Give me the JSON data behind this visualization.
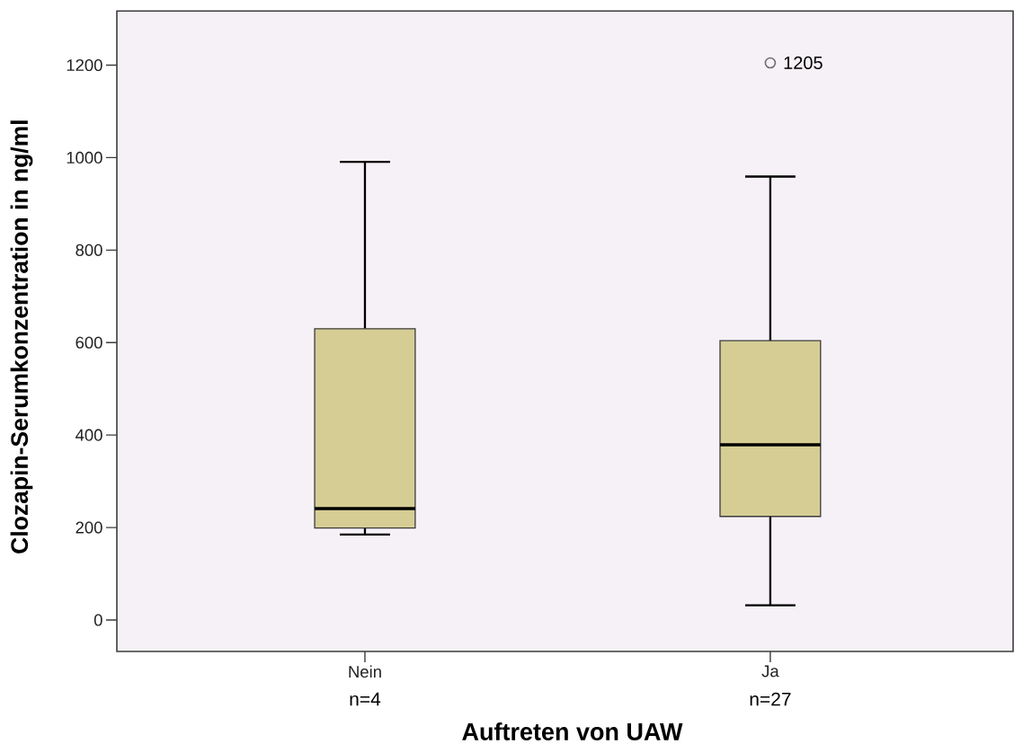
{
  "chart_data": {
    "type": "box",
    "xlabel": "Auftreten von UAW",
    "ylabel": "Clozapin-Serumkonzentration in ng/ml",
    "categories": [
      "Nein",
      "Ja"
    ],
    "boxes": [
      {
        "low": 185,
        "q1": 199,
        "median": 241,
        "q3": 630,
        "high": 991
      },
      {
        "low": 32,
        "q1": 224,
        "median": 379,
        "q3": 604,
        "high": 959,
        "outliers": [
          1205
        ]
      }
    ],
    "color": "#d6cd95",
    "marker": "circle",
    "ylim": [
      -68,
      1317
    ],
    "yticks": [
      0,
      200,
      400,
      600,
      800,
      1000,
      1200
    ],
    "annotations": [
      "1205",
      "n=4",
      "n=27"
    ]
  }
}
